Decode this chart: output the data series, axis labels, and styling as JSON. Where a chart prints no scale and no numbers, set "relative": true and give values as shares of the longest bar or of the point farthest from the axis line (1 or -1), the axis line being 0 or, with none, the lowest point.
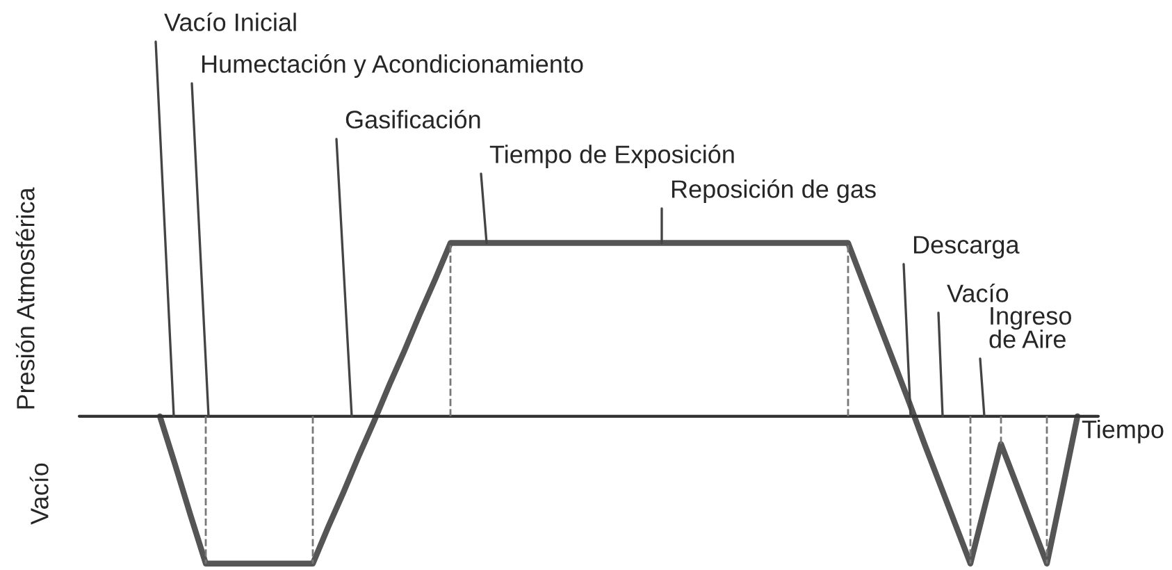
{
  "chart_data": {
    "type": "line",
    "relative": true,
    "line_style": "solid",
    "ylabel": "Presión Atmosférica",
    "xlabel": "Tiempo",
    "categories": [
      null,
      null,
      null,
      null,
      null,
      null,
      null,
      null,
      null,
      null,
      null,
      null,
      null,
      null,
      null,
      null,
      null,
      null,
      null,
      null,
      null,
      null,
      null,
      null,
      null,
      null,
      null,
      null,
      null,
      null,
      null,
      null,
      null,
      null,
      null,
      null,
      null,
      null,
      null,
      null,
      null,
      null,
      null,
      null,
      null,
      null,
      null,
      null,
      null,
      null,
      null,
      null,
      null,
      null,
      null,
      null,
      null,
      null,
      null,
      null,
      null
    ],
    "series": [
      {
        "color": "#555555",
        "values": [
          0,
          -0.28,
          -0.57,
          -0.85,
          -0.85,
          -0.85,
          -0.85,
          -0.85,
          -0.85,
          -0.85,
          -0.85,
          -0.64,
          -0.44,
          -0.23,
          -0.03,
          0.18,
          0.38,
          0.59,
          0.79,
          1,
          1,
          1,
          1,
          1,
          1,
          1,
          1,
          1,
          1,
          1,
          1,
          1,
          1,
          1,
          1,
          1,
          1,
          1,
          1,
          1,
          1,
          1,
          1,
          1,
          1,
          1,
          0.77,
          0.54,
          0.31,
          0.08,
          -0.16,
          -0.39,
          -0.62,
          -0.85,
          -0.5,
          -0.16,
          -0.39,
          -0.62,
          -0.85,
          -0.43,
          0
        ]
      }
    ],
    "annotations": [
      "Vacío Inicial",
      "Humectación y Acondicionamiento",
      "Gasificación",
      "Tiempo de Exposición",
      "Reposición de gas",
      "Descarga",
      "Vacío",
      "Ingreso\nde Aire",
      "Vacío"
    ]
  }
}
